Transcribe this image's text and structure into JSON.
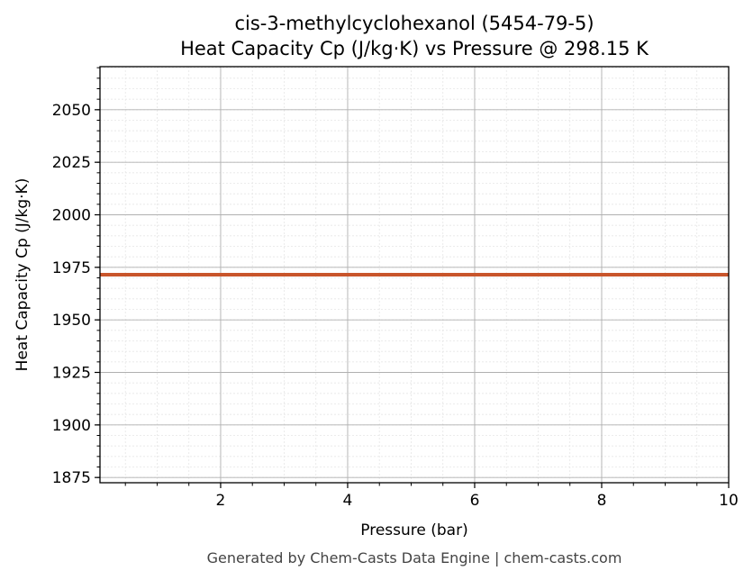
{
  "chart_data": {
    "type": "line",
    "title": "cis-3-methylcyclohexanol (5454-79-5)",
    "subtitle": "Heat Capacity Cp (J/kg·K) vs Pressure @ 298.15 K",
    "xlabel": "Pressure (bar)",
    "ylabel": "Heat Capacity Cp (J/kg·K)",
    "xlim": [
      0.1,
      10
    ],
    "ylim": [
      1872.5,
      2070.5
    ],
    "xticks": [
      2,
      4,
      6,
      8,
      10
    ],
    "yticks": [
      1875,
      1900,
      1925,
      1950,
      1975,
      2000,
      2025,
      2050
    ],
    "x_minor_step": 0.5,
    "y_minor_step": 5,
    "grid": true,
    "series": [
      {
        "color": "#c8552b",
        "x": [
          0.1,
          1,
          2,
          3,
          4,
          5,
          6,
          7,
          8,
          9,
          10
        ],
        "y": [
          1971.5,
          1971.5,
          1971.5,
          1971.5,
          1971.5,
          1971.5,
          1971.5,
          1971.5,
          1971.5,
          1971.5,
          1971.5
        ]
      }
    ]
  },
  "footer": "Generated by Chem-Casts Data Engine | chem-casts.com"
}
